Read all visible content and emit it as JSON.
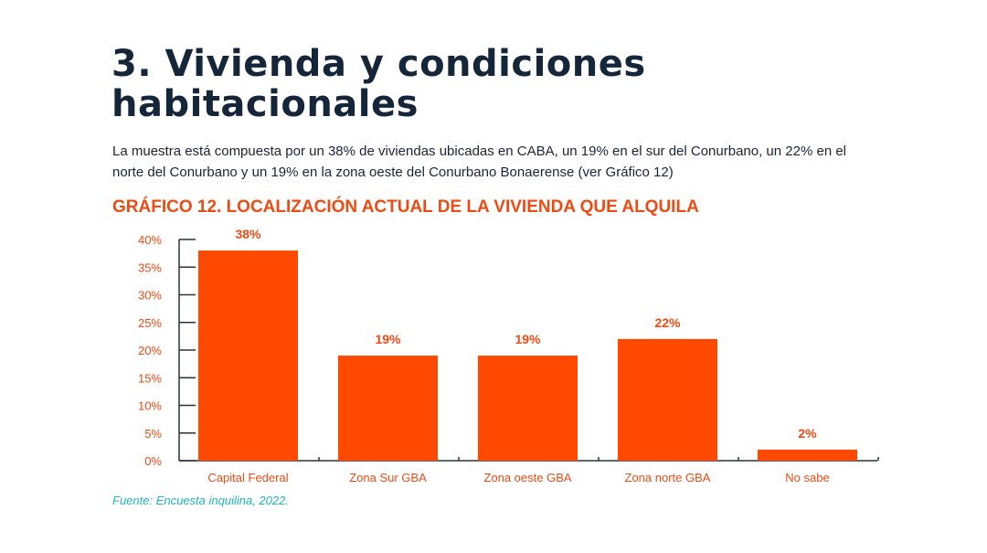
{
  "heading": "3. Vivienda y condiciones habitacionales",
  "intro": "La muestra está compuesta por un 38% de viviendas ubicadas en CABA, un 19% en el sur del Conurbano, un 22% en el norte del Conurbano y un 19% en la zona oeste del Conurbano Bonaerense (ver Gráfico 12)",
  "source": "Fuente: Encuesta inquilina, 2022.",
  "colors": {
    "bar": "#ff4800",
    "accent": "#f04a13",
    "axis": "#2a3340",
    "source": "#1bb5c6"
  },
  "chart_data": {
    "type": "bar",
    "title": "GRÁFICO 12. LOCALIZACIÓN ACTUAL DE LA VIVIENDA QUE ALQUILA",
    "categories": [
      "Capital Federal",
      "Zona Sur GBA",
      "Zona oeste GBA",
      "Zona norte GBA",
      "No sabe"
    ],
    "values": [
      38,
      19,
      19,
      22,
      2
    ],
    "data_labels": [
      "38%",
      "19%",
      "19%",
      "22%",
      "2%"
    ],
    "yticks": [
      "0%",
      "5%",
      "10%",
      "15%",
      "20%",
      "25%",
      "30%",
      "35%",
      "40%"
    ],
    "ylim": [
      0,
      40
    ],
    "xlabel": "",
    "ylabel": "",
    "grid": false
  }
}
